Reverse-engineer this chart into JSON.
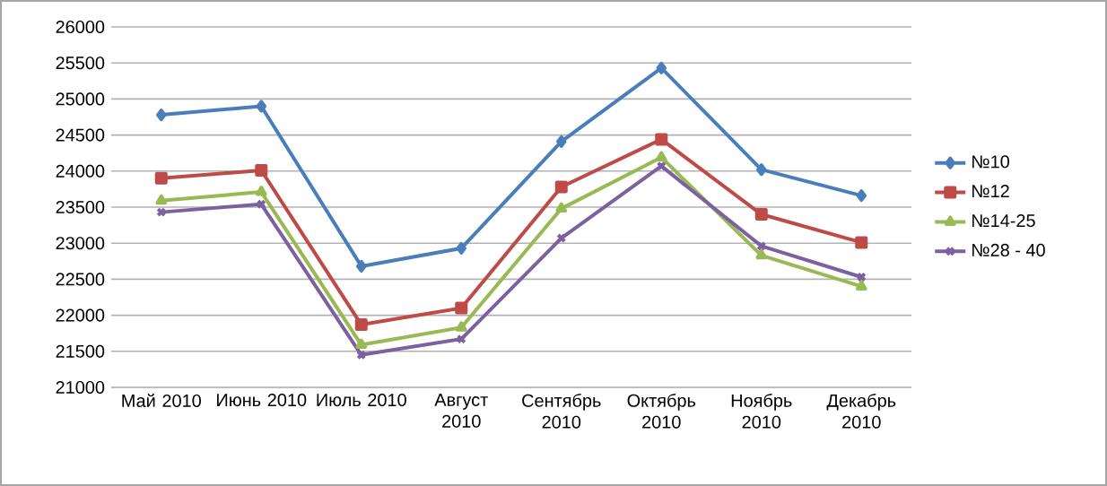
{
  "chart_data": {
    "type": "line",
    "categories": [
      "Май 2010",
      "Июнь 2010",
      "Июль 2010",
      "Август 2010",
      "Сентябрь 2010",
      "Октябрь 2010",
      "Ноябрь 2010",
      "Декабрь 2010"
    ],
    "series": [
      {
        "name": "№10",
        "color": "#4a7ebb",
        "marker": "diamond",
        "values": [
          24780,
          24900,
          22680,
          22930,
          24410,
          25430,
          24020,
          23660
        ]
      },
      {
        "name": "№12",
        "color": "#be4b48",
        "marker": "square",
        "values": [
          23900,
          24010,
          21870,
          22100,
          23780,
          24440,
          23400,
          23010
        ]
      },
      {
        "name": "№14-25",
        "color": "#98b954",
        "marker": "triangle",
        "values": [
          23590,
          23710,
          21590,
          21830,
          23480,
          24190,
          22830,
          22400
        ]
      },
      {
        "name": "№28 - 40",
        "color": "#7d60a0",
        "marker": "cross",
        "values": [
          23430,
          23540,
          21450,
          21670,
          23070,
          24070,
          22960,
          22530
        ]
      }
    ],
    "ylim": [
      21000,
      26000
    ],
    "yticks": [
      21000,
      21500,
      22000,
      22500,
      23000,
      23500,
      24000,
      24500,
      25000,
      25500,
      26000
    ],
    "grid": "y",
    "legend": "right",
    "line_style": "solid"
  }
}
